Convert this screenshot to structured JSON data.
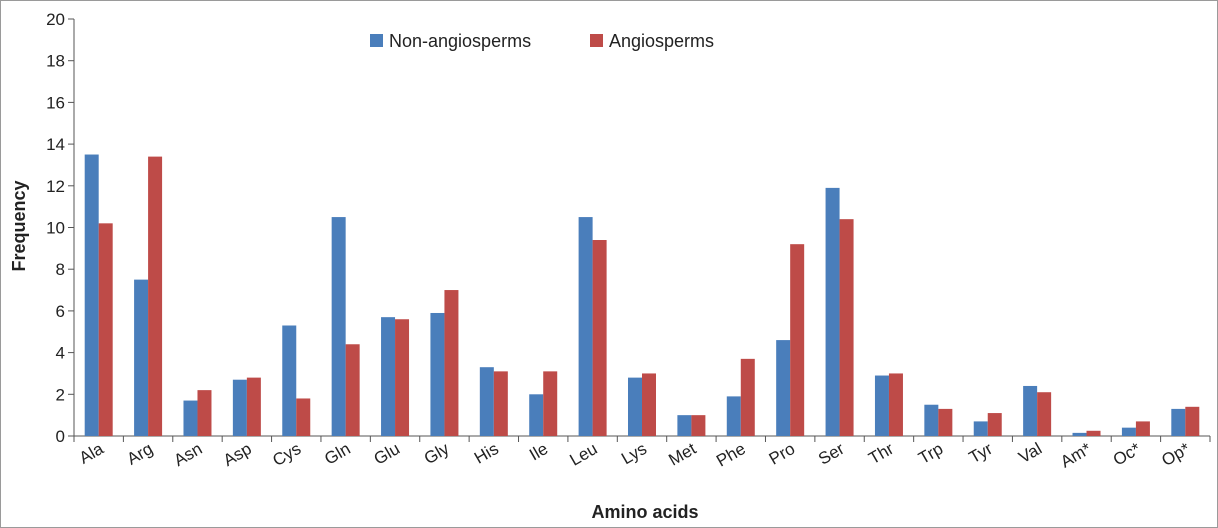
{
  "chart_data": {
    "type": "bar",
    "xlabel": "Amino acids",
    "ylabel": "Frequency",
    "ylim": [
      0,
      20
    ],
    "yticks": [
      0,
      2,
      4,
      6,
      8,
      10,
      12,
      14,
      16,
      18,
      20
    ],
    "categories": [
      "Ala",
      "Arg",
      "Asn",
      "Asp",
      "Cys",
      "Gln",
      "Glu",
      "Gly",
      "His",
      "Ile",
      "Leu",
      "Lys",
      "Met",
      "Phe",
      "Pro",
      "Ser",
      "Thr",
      "Trp",
      "Tyr",
      "Val",
      "Am*",
      "Oc*",
      "Op*"
    ],
    "series": [
      {
        "name": "Non-angiosperms",
        "color": "#4a7ebb",
        "values": [
          13.5,
          7.5,
          1.7,
          2.7,
          5.3,
          10.5,
          5.7,
          5.9,
          3.3,
          2.0,
          10.5,
          2.8,
          1.0,
          1.9,
          4.6,
          11.9,
          2.9,
          1.5,
          0.7,
          2.4,
          0.15,
          0.4,
          1.3
        ]
      },
      {
        "name": "Angiosperms",
        "color": "#be4b48",
        "values": [
          10.2,
          13.4,
          2.2,
          2.8,
          1.8,
          4.4,
          5.6,
          7.0,
          3.1,
          3.1,
          9.4,
          3.0,
          1.0,
          3.7,
          9.2,
          10.4,
          3.0,
          1.3,
          1.1,
          2.1,
          0.25,
          0.7,
          1.4
        ]
      }
    ],
    "legend_position": "top-center",
    "grid": false
  }
}
